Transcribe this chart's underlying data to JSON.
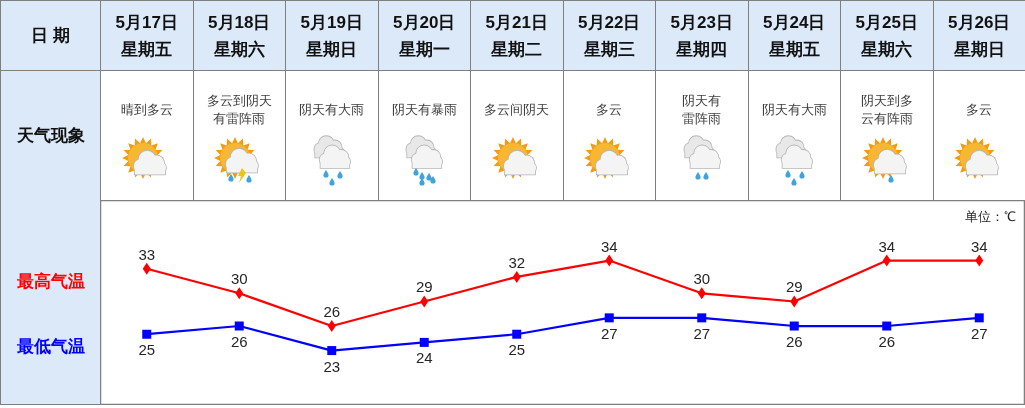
{
  "chart_data": {
    "type": "line",
    "xlabel": "日 期",
    "ylabel": "单位：℃",
    "line_style": "solid",
    "data_labels": true,
    "categories": [
      "5月17日星期五",
      "5月18日星期六",
      "5月19日星期日",
      "5月20日星期一",
      "5月21日星期二",
      "5月22日星期三",
      "5月23日星期四",
      "5月24日星期五",
      "5月25日星期六",
      "5月26日星期日"
    ],
    "series": [
      {
        "name": "最高气温",
        "color": "#ff0000",
        "marker": "diamond",
        "values": [
          33,
          30,
          26,
          29,
          32,
          34,
          30,
          29,
          34,
          34
        ]
      },
      {
        "name": "最低气温",
        "color": "#0000ff",
        "marker": "square",
        "values": [
          25,
          26,
          23,
          24,
          25,
          27,
          27,
          26,
          26,
          27
        ]
      }
    ],
    "annotations": [
      "天气现象",
      "晴到多云",
      "多云到阴天有雷阵雨",
      "阴天有大雨",
      "阴天有暴雨",
      "多云间阴天",
      "多云",
      "阴天有雷阵雨",
      "阴天有大雨",
      "阴天到多云有阵雨",
      "多云"
    ]
  }
}
